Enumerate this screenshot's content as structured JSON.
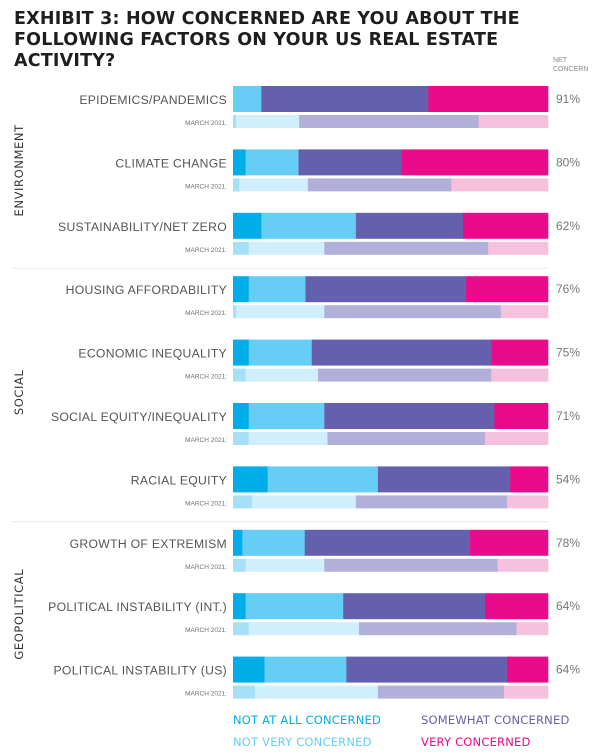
{
  "title": "EXHIBIT 3: HOW CONCERNED ARE YOU ABOUT THE FOLLOWING FACTORS ON YOUR US REAL ESTATE ACTIVITY?",
  "net_header": "NET CONCERN",
  "comparison_label": "MARCH 2021:",
  "colors": {
    "not_at_all": "#00ade8",
    "not_very": "#66cef5",
    "somewhat": "#6560ad",
    "very": "#ea0a8c",
    "not_at_all_2021": "#a5e0f6",
    "not_very_2021": "#d0eefb",
    "somewhat_2021": "#b2afd8",
    "very_2021": "#f6c1dc"
  },
  "legend": [
    {
      "label": "NOT AT ALL CONCERNED",
      "color": "#00ade8"
    },
    {
      "label": "NOT VERY CONCERNED",
      "color": "#66cef5"
    },
    {
      "label": "SOMEWHAT CONCERNED",
      "color": "#6560ad"
    },
    {
      "label": "VERY CONCERNED",
      "color": "#ea0a8c"
    }
  ],
  "chart_data": {
    "type": "bar",
    "stacked": true,
    "orientation": "horizontal",
    "unit": "%",
    "xlim": [
      0,
      100
    ],
    "series": [
      {
        "name": "NOT AT ALL CONCERNED"
      },
      {
        "name": "NOT VERY CONCERNED"
      },
      {
        "name": "SOMEWHAT CONCERNED"
      },
      {
        "name": "VERY CONCERNED"
      }
    ],
    "groups": [
      {
        "name": "ENVIRONMENT",
        "items": [
          {
            "label": "EPIDEMICS/PANDEMICS",
            "net": "91%",
            "current": [
              0,
              9,
              53,
              38
            ],
            "march_2021": [
              1,
              20,
              57,
              22
            ]
          },
          {
            "label": "CLIMATE CHANGE",
            "net": "80%",
            "current": [
              4,
              17,
              33,
              47
            ],
            "march_2021": [
              2,
              22,
              46,
              31
            ]
          },
          {
            "label": "SUSTAINABILITY/NET ZERO",
            "net": "62%",
            "current": [
              9,
              30,
              34,
              27
            ],
            "march_2021": [
              5,
              24,
              52,
              19
            ]
          }
        ]
      },
      {
        "name": "SOCIAL",
        "items": [
          {
            "label": "HOUSING AFFORDABILITY",
            "net": "76%",
            "current": [
              5,
              18,
              51,
              26
            ],
            "march_2021": [
              1,
              28,
              56,
              15
            ]
          },
          {
            "label": "ECONOMIC INEQUALITY",
            "net": "75%",
            "current": [
              5,
              20,
              57,
              18
            ],
            "march_2021": [
              4,
              23,
              55,
              18
            ]
          },
          {
            "label": "SOCIAL EQUITY/INEQUALITY",
            "net": "71%",
            "current": [
              5,
              24,
              54,
              17
            ],
            "march_2021": [
              5,
              25,
              50,
              20
            ]
          },
          {
            "label": "RACIAL EQUITY",
            "net": "54%",
            "current": [
              11,
              35,
              42,
              12
            ],
            "march_2021": [
              6,
              33,
              48,
              13
            ]
          }
        ]
      },
      {
        "name": "GEOPOLITICAL",
        "items": [
          {
            "label": "GROWTH OF EXTREMISM",
            "net": "78%",
            "current": [
              3,
              20,
              53,
              25
            ],
            "march_2021": [
              4,
              25,
              55,
              16
            ]
          },
          {
            "label": "POLITICAL INSTABILITY (INT.)",
            "net": "64%",
            "current": [
              4,
              31,
              45,
              20
            ],
            "march_2021": [
              5,
              35,
              50,
              10
            ]
          },
          {
            "label": "POLITICAL INSTABILITY (US)",
            "net": "64%",
            "current": [
              10,
              26,
              51,
              13
            ],
            "march_2021": [
              7,
              39,
              40,
              14
            ]
          }
        ]
      }
    ]
  }
}
